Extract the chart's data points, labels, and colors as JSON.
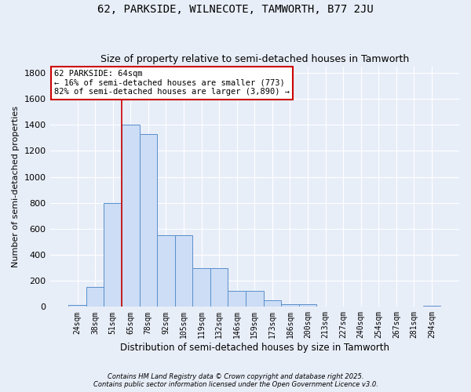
{
  "title1": "62, PARKSIDE, WILNECOTE, TAMWORTH, B77 2JU",
  "title2": "Size of property relative to semi-detached houses in Tamworth",
  "xlabel": "Distribution of semi-detached houses by size in Tamworth",
  "ylabel": "Number of semi-detached properties",
  "categories": [
    "24sqm",
    "38sqm",
    "51sqm",
    "65sqm",
    "78sqm",
    "92sqm",
    "105sqm",
    "119sqm",
    "132sqm",
    "146sqm",
    "159sqm",
    "173sqm",
    "186sqm",
    "200sqm",
    "213sqm",
    "227sqm",
    "240sqm",
    "254sqm",
    "267sqm",
    "281sqm",
    "294sqm"
  ],
  "values": [
    15,
    150,
    800,
    1400,
    1330,
    550,
    550,
    295,
    295,
    120,
    120,
    50,
    20,
    20,
    5,
    5,
    5,
    5,
    5,
    5,
    10
  ],
  "bar_color": "#ccddf5",
  "bar_edge_color": "#5b8fcc",
  "vline_color": "#cc0000",
  "annotation_line1": "62 PARKSIDE: 64sqm",
  "annotation_line2": "← 16% of semi-detached houses are smaller (773)",
  "annotation_line3": "82% of semi-detached houses are larger (3,890) →",
  "annotation_box_color": "white",
  "annotation_box_edge": "#cc0000",
  "footer1": "Contains HM Land Registry data © Crown copyright and database right 2025.",
  "footer2": "Contains public sector information licensed under the Open Government Licence v3.0.",
  "ylim": [
    0,
    1850
  ],
  "yticks": [
    0,
    200,
    400,
    600,
    800,
    1000,
    1200,
    1400,
    1600,
    1800
  ],
  "background_color": "#e8eef8",
  "grid_color": "white",
  "vline_bar_index": 3
}
